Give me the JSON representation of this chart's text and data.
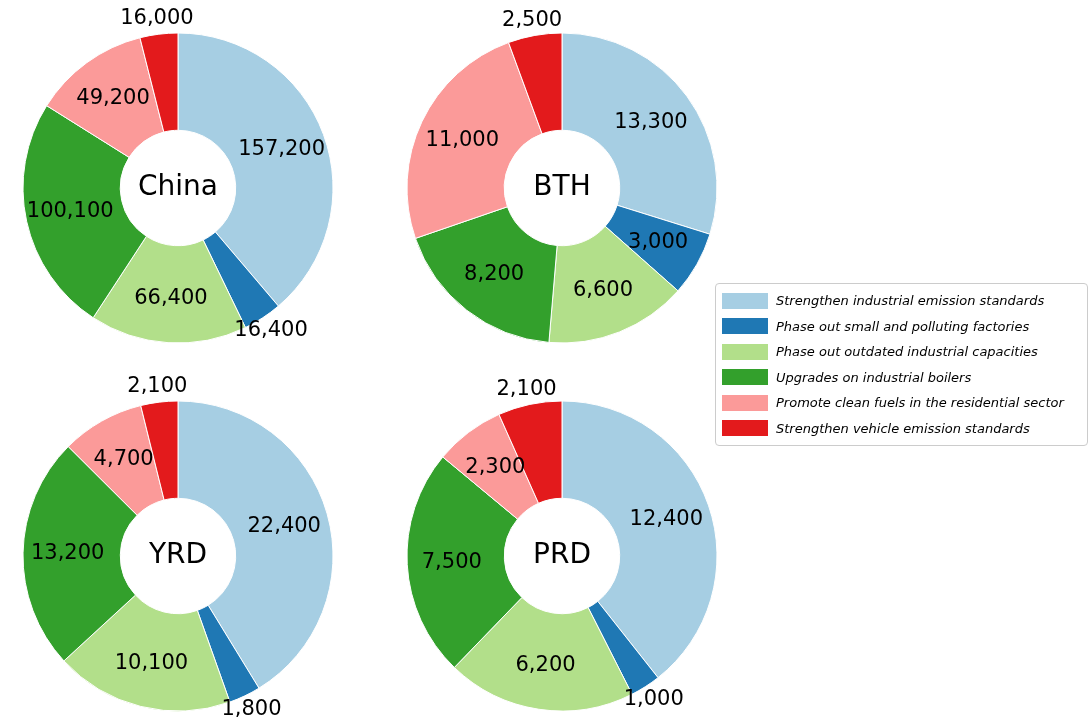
{
  "chart_data": [
    {
      "type": "donut",
      "title": "China",
      "categories": [
        "Strengthen industrial emission standards",
        "Phase out small and polluting factories",
        "Phase out outdated industrial capacities",
        "Upgrades on industrial boilers",
        "Promote clean fuels in the residential sector",
        "Strengthen vehicle emission standards"
      ],
      "values": [
        157200,
        16400,
        66400,
        100100,
        49200,
        16000
      ],
      "value_labels": [
        "157,200",
        "16,400",
        "66,400",
        "100,100",
        "49,200",
        "16,000"
      ],
      "colors": [
        "#a6cee3",
        "#1f78b4",
        "#b2df8a",
        "#33a02c",
        "#fb9a99",
        "#e31a1c"
      ],
      "legend": "right"
    },
    {
      "type": "donut",
      "title": "BTH",
      "values": [
        13300,
        3000,
        6600,
        8200,
        11000,
        2500
      ],
      "value_labels": [
        "13,300",
        "3,000",
        "6,600",
        "8,200",
        "11,000",
        "2,500"
      ],
      "colors": [
        "#a6cee3",
        "#1f78b4",
        "#b2df8a",
        "#33a02c",
        "#fb9a99",
        "#e31a1c"
      ]
    },
    {
      "type": "donut",
      "title": "YRD",
      "values": [
        22400,
        1800,
        10100,
        13200,
        4700,
        2100
      ],
      "value_labels": [
        "22,400",
        "1,800",
        "10,100",
        "13,200",
        "4,700",
        "2,100"
      ],
      "colors": [
        "#a6cee3",
        "#1f78b4",
        "#b2df8a",
        "#33a02c",
        "#fb9a99",
        "#e31a1c"
      ]
    },
    {
      "type": "donut",
      "title": "PRD",
      "values": [
        12400,
        1000,
        6200,
        7500,
        2300,
        2100
      ],
      "value_labels": [
        "12,400",
        "1,000",
        "6,200",
        "7,500",
        "2,300",
        "2,100"
      ],
      "colors": [
        "#a6cee3",
        "#1f78b4",
        "#b2df8a",
        "#33a02c",
        "#fb9a99",
        "#e31a1c"
      ]
    }
  ]
}
